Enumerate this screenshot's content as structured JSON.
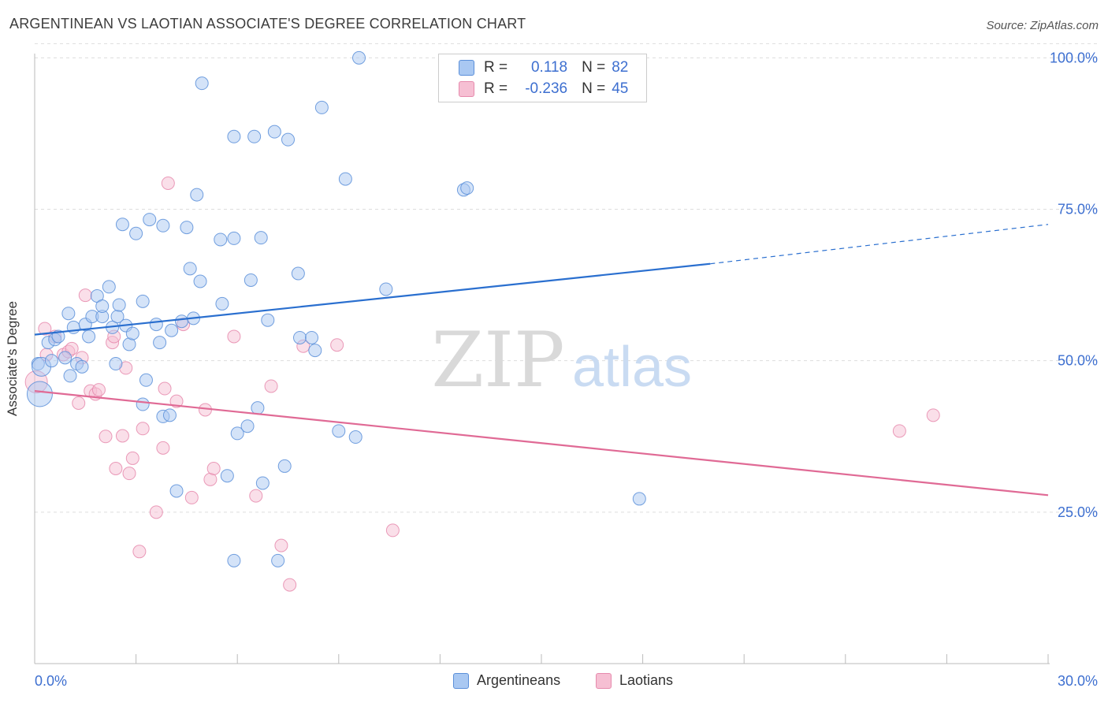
{
  "title": "ARGENTINEAN VS LAOTIAN ASSOCIATE'S DEGREE CORRELATION CHART",
  "source": "Source: ZipAtlas.com",
  "watermark": {
    "zip": "ZIP",
    "atlas": "atlas"
  },
  "legend_top": [
    {
      "r_label": "R =",
      "r_value": "0.118",
      "n_label": "N =",
      "n_value": "82"
    },
    {
      "r_label": "R =",
      "r_value": "-0.236",
      "n_label": "N =",
      "n_value": "45"
    }
  ],
  "legend_bottom": [
    {
      "label": "Argentineans"
    },
    {
      "label": "Laotians"
    }
  ],
  "colors": {
    "argentineans_fill": "#a9c8f2",
    "argentineans_stroke": "#5b8fd9",
    "argentineans_line": "#2a6fcf",
    "laotians_fill": "#f6bfd3",
    "laotians_stroke": "#e68aad",
    "laotians_line": "#e06a95",
    "axis_tick_text": "#3d6fd0",
    "grid": "#dddddd"
  },
  "chart_data": {
    "type": "scatter",
    "title": "ARGENTINEAN VS LAOTIAN ASSOCIATE'S DEGREE CORRELATION CHART",
    "xlabel": "",
    "ylabel": "Associate's Degree",
    "xlim": [
      0,
      30
    ],
    "ylim": [
      0,
      102
    ],
    "x_tick_labels": [
      "0.0%",
      "30.0%"
    ],
    "y_ticks": [
      25,
      50,
      75,
      100
    ],
    "y_tick_labels": [
      "25.0%",
      "50.0%",
      "75.0%",
      "100.0%"
    ],
    "grid": true,
    "legend_position": "top-center",
    "series": [
      {
        "name": "Argentineans",
        "trend": {
          "x_start": 0,
          "y_start": 54.3,
          "x_solid_end": 20.0,
          "y_solid_end": 66.0,
          "x_end": 30,
          "y_end": 72.5
        },
        "points": [
          [
            0.1,
            49.5
          ],
          [
            0.15,
            44.5
          ],
          [
            0.2,
            49.0
          ],
          [
            0.4,
            53.0
          ],
          [
            0.5,
            50.0
          ],
          [
            0.6,
            53.5
          ],
          [
            0.7,
            54.0
          ],
          [
            0.9,
            50.5
          ],
          [
            1.0,
            57.8
          ],
          [
            1.05,
            47.5
          ],
          [
            1.15,
            55.5
          ],
          [
            1.25,
            49.5
          ],
          [
            1.4,
            49.0
          ],
          [
            1.5,
            56.0
          ],
          [
            1.6,
            54.0
          ],
          [
            1.7,
            57.3
          ],
          [
            1.85,
            60.7
          ],
          [
            2.0,
            57.3
          ],
          [
            2.0,
            59.0
          ],
          [
            2.2,
            62.2
          ],
          [
            2.3,
            55.5
          ],
          [
            2.4,
            49.5
          ],
          [
            2.45,
            57.3
          ],
          [
            2.5,
            59.2
          ],
          [
            2.6,
            72.5
          ],
          [
            2.7,
            55.8
          ],
          [
            2.8,
            52.7
          ],
          [
            2.9,
            54.5
          ],
          [
            3.0,
            71.0
          ],
          [
            3.2,
            42.8
          ],
          [
            3.2,
            59.8
          ],
          [
            3.3,
            46.8
          ],
          [
            3.4,
            73.3
          ],
          [
            3.6,
            56.0
          ],
          [
            3.7,
            53.0
          ],
          [
            3.8,
            40.8
          ],
          [
            3.8,
            72.3
          ],
          [
            4.0,
            41.0
          ],
          [
            4.05,
            55.0
          ],
          [
            4.2,
            28.5
          ],
          [
            4.35,
            56.5
          ],
          [
            4.5,
            72.0
          ],
          [
            4.6,
            65.2
          ],
          [
            4.7,
            57.0
          ],
          [
            4.8,
            77.4
          ],
          [
            4.9,
            63.1
          ],
          [
            4.95,
            95.8
          ],
          [
            5.5,
            70.0
          ],
          [
            5.55,
            59.4
          ],
          [
            5.7,
            31.0
          ],
          [
            5.9,
            70.2
          ],
          [
            5.9,
            87.0
          ],
          [
            5.9,
            17.0
          ],
          [
            6.0,
            38.0
          ],
          [
            6.3,
            39.2
          ],
          [
            6.4,
            63.3
          ],
          [
            6.5,
            87.0
          ],
          [
            6.6,
            42.2
          ],
          [
            6.7,
            70.3
          ],
          [
            6.75,
            29.8
          ],
          [
            6.9,
            56.7
          ],
          [
            7.1,
            87.8
          ],
          [
            7.2,
            17.0
          ],
          [
            7.4,
            32.6
          ],
          [
            7.5,
            86.5
          ],
          [
            7.8,
            64.4
          ],
          [
            7.85,
            53.8
          ],
          [
            8.2,
            53.8
          ],
          [
            8.3,
            51.7
          ],
          [
            8.5,
            91.8
          ],
          [
            9.0,
            38.4
          ],
          [
            9.2,
            80.0
          ],
          [
            9.5,
            37.4
          ],
          [
            9.6,
            100.0
          ],
          [
            10.4,
            61.8
          ],
          [
            12.7,
            78.2
          ],
          [
            12.8,
            78.5
          ],
          [
            17.9,
            27.2
          ]
        ],
        "sizes": {
          "default": 8,
          "large": [
            [
              0.15,
              44.5,
              16
            ],
            [
              0.2,
              49.0,
              12
            ]
          ]
        }
      },
      {
        "name": "Laotians",
        "trend": {
          "x_start": 0,
          "y_start": 45.0,
          "x_end": 30,
          "y_end": 27.8
        },
        "points": [
          [
            0.05,
            46.5
          ],
          [
            0.3,
            55.3
          ],
          [
            0.35,
            51.0
          ],
          [
            0.6,
            54.0
          ],
          [
            0.85,
            51.0
          ],
          [
            1.0,
            51.5
          ],
          [
            1.1,
            52.0
          ],
          [
            1.3,
            43.0
          ],
          [
            1.4,
            50.5
          ],
          [
            1.5,
            60.8
          ],
          [
            1.65,
            45.0
          ],
          [
            1.8,
            44.5
          ],
          [
            1.9,
            45.2
          ],
          [
            2.1,
            37.5
          ],
          [
            2.3,
            53.0
          ],
          [
            2.35,
            54.0
          ],
          [
            2.4,
            32.2
          ],
          [
            2.6,
            37.6
          ],
          [
            2.7,
            48.8
          ],
          [
            2.8,
            31.4
          ],
          [
            2.9,
            33.9
          ],
          [
            3.1,
            18.5
          ],
          [
            3.2,
            38.8
          ],
          [
            3.6,
            25.0
          ],
          [
            3.8,
            35.6
          ],
          [
            3.85,
            45.4
          ],
          [
            3.95,
            79.3
          ],
          [
            4.2,
            43.3
          ],
          [
            4.4,
            56.0
          ],
          [
            4.65,
            27.4
          ],
          [
            5.05,
            41.9
          ],
          [
            5.2,
            30.4
          ],
          [
            5.3,
            32.2
          ],
          [
            5.9,
            54.0
          ],
          [
            6.55,
            27.7
          ],
          [
            7.0,
            45.8
          ],
          [
            7.3,
            19.5
          ],
          [
            7.55,
            13.0
          ],
          [
            7.95,
            52.4
          ],
          [
            8.95,
            52.6
          ],
          [
            10.6,
            22.0
          ],
          [
            25.6,
            38.4
          ],
          [
            26.6,
            41.0
          ]
        ],
        "sizes": {
          "default": 8,
          "large": [
            [
              0.05,
              46.5,
              14
            ]
          ]
        }
      }
    ]
  }
}
